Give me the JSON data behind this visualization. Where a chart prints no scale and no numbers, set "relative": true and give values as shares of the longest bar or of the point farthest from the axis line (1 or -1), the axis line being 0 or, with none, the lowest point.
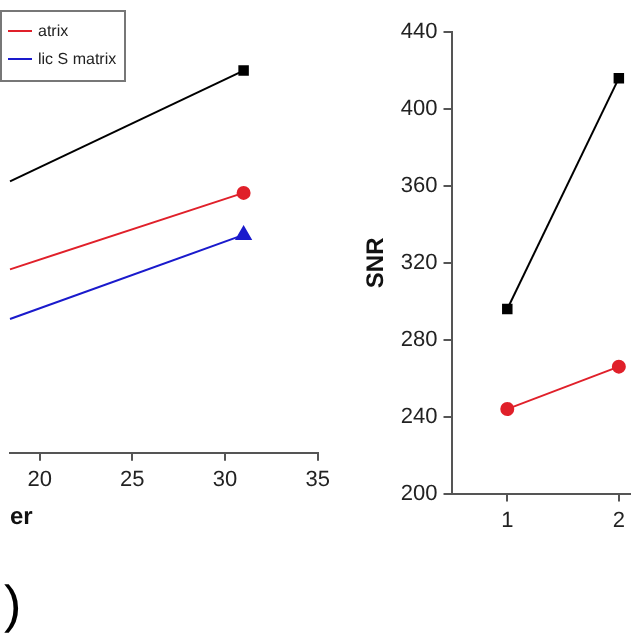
{
  "chart_data": [
    {
      "type": "line",
      "xlabel": "er",
      "relative": true,
      "x": [
        18.4,
        31
      ],
      "xlim": [
        18.4,
        35
      ],
      "xticks": [
        20,
        25,
        30,
        35
      ],
      "grid": false,
      "legend": "top left",
      "annotations": [
        ")"
      ],
      "series": [
        {
          "color": "#000000",
          "marker": "square",
          "values": [
            0.71,
            1
          ]
        },
        {
          "name": "atrix",
          "color": "#e0202a",
          "marker": "circle",
          "values": [
            0.48,
            0.68
          ]
        },
        {
          "name": "lic S matrix",
          "color": "#1a1acc",
          "marker": "triangle",
          "values": [
            0.35,
            0.57
          ]
        }
      ]
    },
    {
      "type": "line",
      "ylabel": "SNR",
      "x": [
        1,
        2
      ],
      "xlim": [
        0.5,
        2.1
      ],
      "xticks": [
        1,
        2
      ],
      "ylim": [
        200,
        440
      ],
      "yticks": [
        200,
        240,
        280,
        320,
        360,
        400,
        440
      ],
      "grid": false,
      "series": [
        {
          "color": "#000000",
          "marker": "square",
          "values": [
            296,
            416
          ]
        },
        {
          "color": "#e0202a",
          "marker": "circle",
          "values": [
            244,
            266
          ]
        }
      ]
    }
  ]
}
